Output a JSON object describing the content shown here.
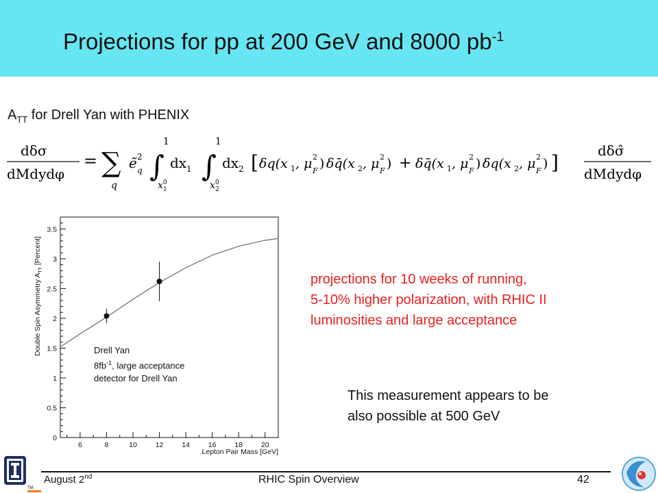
{
  "slide": {
    "title": "Projections for pp at 200 GeV and 8000 pb",
    "title_superscript": "-1",
    "subtitle_prefix": "A",
    "subtitle_subscript": "TT",
    "subtitle_rest": " for Drell Yan with PHENIX"
  },
  "equation": {
    "lhs_num": "dδσ",
    "lhs_den": "dMdydφ",
    "sum_sub": "q",
    "sum_term": "ẽ",
    "sum_term_sup": "2",
    "sum_term_sub": "q",
    "int1_upper": "1",
    "int1_lower": "x",
    "int1_lower_sup": "0",
    "int1_lower_sub": "1",
    "int1_var": "dx",
    "int1_var_sub": "1",
    "int2_upper": "1",
    "int2_lower": "x",
    "int2_lower_sup": "0",
    "int2_lower_sub": "2",
    "int2_var": "dx",
    "int2_var_sub": "2",
    "bracket_body_1": "δq(x",
    "bracket_body_2": "δq̄(x",
    "bracket_body_3": "δq̄(x",
    "bracket_body_4": "δq(x",
    "mu": ", μ",
    "mu_sup": "2",
    "mu_sub": "F",
    "rhs_num": "dδσ̂",
    "rhs_den": "dMdydφ"
  },
  "chart_data": {
    "type": "scatter",
    "xlabel": "Lepton Pair Mass [GeV]",
    "ylabel": "Double Spin Asymmetry A",
    "ylabel_sub": "TT",
    "ylabel_unit": " [Percent]",
    "xlim": [
      4.5,
      21
    ],
    "ylim": [
      0,
      3.7
    ],
    "xticks": [
      "6",
      "8",
      "10",
      "12",
      "14",
      "16",
      "18",
      "20"
    ],
    "yticks": [
      "0",
      "0.5",
      "1",
      "1.5",
      "2",
      "2.5",
      "3",
      "3.5"
    ],
    "points": [
      {
        "x": 8,
        "y": 2.04,
        "err": 0.12
      },
      {
        "x": 12,
        "y": 2.62,
        "err": 0.33
      }
    ],
    "curve": [
      {
        "x": 4.5,
        "y": 1.52
      },
      {
        "x": 6,
        "y": 1.74
      },
      {
        "x": 8,
        "y": 2.02
      },
      {
        "x": 10,
        "y": 2.32
      },
      {
        "x": 12,
        "y": 2.6
      },
      {
        "x": 14,
        "y": 2.85
      },
      {
        "x": 16,
        "y": 3.06
      },
      {
        "x": 18,
        "y": 3.21
      },
      {
        "x": 20,
        "y": 3.31
      },
      {
        "x": 21,
        "y": 3.34
      }
    ],
    "legend_line1": "Drell Yan",
    "legend_line2_a": "8fb",
    "legend_line2_sup": "-1",
    "legend_line2_b": ", large acceptance",
    "legend_line3": "detector for Drell Yan"
  },
  "notes": {
    "red_lines": [
      "projections for 10 weeks of running,",
      "5-10% higher polarization, with RHIC II",
      "luminosities and large acceptance"
    ],
    "black_lines": [
      "This measurement appears to be",
      "also possible at 500 GeV"
    ],
    "red_color": "#e8211e",
    "title_bar_color": "#66e6f2"
  },
  "footer": {
    "date": "August 2",
    "date_sup": "nd",
    "center": "RHIC Spin Overview",
    "page": "42"
  },
  "icons": {
    "left_logo": "illinois-logo-icon",
    "right_logo": "rhic-spin-logo-icon"
  }
}
